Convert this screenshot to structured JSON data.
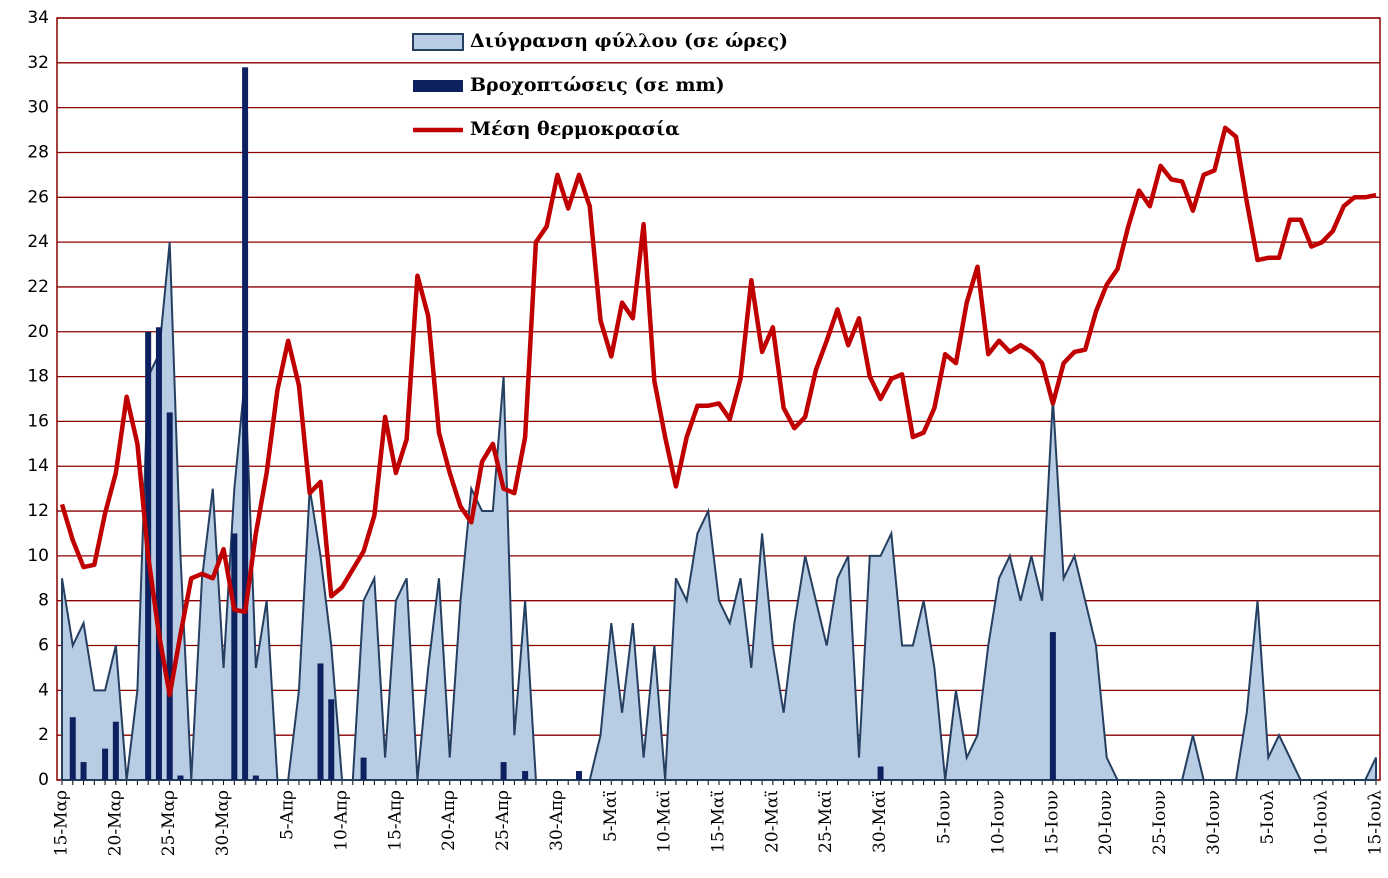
{
  "chart_data": {
    "type": "combo",
    "categories": [
      "15-Μαρ",
      null,
      null,
      null,
      null,
      "20-Μαρ",
      null,
      null,
      null,
      null,
      "25-Μαρ",
      null,
      null,
      null,
      null,
      "30-Μαρ",
      null,
      null,
      null,
      null,
      null,
      "5-Απρ",
      null,
      null,
      null,
      null,
      "10-Απρ",
      null,
      null,
      null,
      null,
      "15-Απρ",
      null,
      null,
      null,
      null,
      "20-Απρ",
      null,
      null,
      null,
      null,
      "25-Απρ",
      null,
      null,
      null,
      null,
      "30-Απρ",
      null,
      null,
      null,
      null,
      "5-Μαϊ",
      null,
      null,
      null,
      null,
      "10-Μαϊ",
      null,
      null,
      null,
      null,
      "15-Μαϊ",
      null,
      null,
      null,
      null,
      "20-Μαϊ",
      null,
      null,
      null,
      null,
      "25-Μαϊ",
      null,
      null,
      null,
      null,
      "30-Μαϊ",
      null,
      null,
      null,
      null,
      null,
      "5-Ιουν",
      null,
      null,
      null,
      null,
      "10-Ιουν",
      null,
      null,
      null,
      null,
      "15-Ιουν",
      null,
      null,
      null,
      null,
      "20-Ιουν",
      null,
      null,
      null,
      null,
      "25-Ιουν",
      null,
      null,
      null,
      null,
      "30-Ιουν",
      null,
      null,
      null,
      null,
      "5-Ιουλ",
      null,
      null,
      null,
      null,
      "10-Ιουλ",
      null,
      null,
      null,
      null,
      "15-Ιουλ"
    ],
    "series": [
      {
        "name": "Διύγρανση φύλλου (σε ώρες)",
        "type": "area",
        "color": "#b8cce4",
        "values": [
          9,
          6,
          7,
          4,
          4,
          6,
          0,
          4,
          18,
          19,
          24,
          10,
          0,
          9,
          13,
          5,
          13,
          18,
          5,
          8,
          0,
          0,
          4,
          13,
          10,
          6,
          0,
          0,
          8,
          9,
          1,
          8,
          9,
          0,
          5,
          9,
          1,
          8,
          13,
          12,
          12,
          18,
          2,
          8,
          0,
          0,
          0,
          0,
          0,
          0,
          2,
          7,
          3,
          7,
          1,
          6,
          0,
          9,
          8,
          11,
          12,
          8,
          7,
          9,
          5,
          11,
          6,
          3,
          7,
          10,
          8,
          6,
          9,
          10,
          1,
          10,
          10,
          11,
          6,
          6,
          8,
          5,
          0,
          4,
          1,
          2,
          6,
          9,
          10,
          8,
          10,
          8,
          17,
          9,
          10,
          8,
          6,
          1,
          0,
          0,
          0,
          0,
          0,
          0,
          0,
          2,
          0,
          0,
          0,
          0,
          3,
          8,
          1,
          2,
          1,
          0,
          0,
          0,
          0,
          0,
          0,
          0,
          1
        ]
      },
      {
        "name": "Βροχοπτώσεις (σε mm)",
        "type": "bar",
        "color": "#0d2060",
        "values": [
          0,
          2.8,
          0.8,
          0,
          1.4,
          2.6,
          0,
          0,
          20,
          20.2,
          16.4,
          0.2,
          0,
          0,
          0,
          0,
          11,
          31.8,
          0.2,
          0,
          0,
          0,
          0,
          0,
          5.2,
          3.6,
          0,
          0,
          1,
          0,
          0,
          0,
          0,
          0,
          0,
          0,
          0,
          0,
          0,
          0,
          0,
          0.8,
          0,
          0.4,
          0,
          0,
          0,
          0,
          0.4,
          0,
          0,
          0,
          0,
          0,
          0,
          0,
          0,
          0,
          0,
          0,
          0,
          0,
          0,
          0,
          0,
          0,
          0,
          0,
          0,
          0,
          0,
          0,
          0,
          0,
          0,
          0,
          0.6,
          0,
          0,
          0,
          0,
          0,
          0,
          0,
          0,
          0,
          0,
          0,
          0,
          0,
          0,
          0,
          6.6,
          0,
          0,
          0,
          0,
          0,
          0,
          0,
          0,
          0,
          0,
          0,
          0,
          0,
          0,
          0,
          0,
          0,
          0,
          0,
          0,
          0,
          0,
          0,
          0,
          0,
          0,
          0,
          0,
          0,
          0
        ]
      },
      {
        "name": "Μέση θερμοκρασία",
        "type": "line",
        "color": "#c00000",
        "values": [
          12.3,
          10.7,
          9.5,
          9.6,
          11.9,
          13.7,
          17.1,
          15.0,
          10.0,
          6.5,
          3.8,
          6.5,
          9.0,
          9.2,
          9.0,
          10.3,
          7.6,
          7.5,
          11.0,
          13.7,
          17.4,
          19.6,
          17.6,
          12.8,
          13.3,
          8.2,
          8.6,
          9.4,
          10.2,
          11.8,
          16.2,
          13.7,
          15.2,
          22.5,
          20.7,
          15.5,
          13.7,
          12.2,
          11.5,
          14.2,
          15.0,
          13.0,
          12.8,
          15.3,
          24.0,
          24.7,
          27.0,
          25.5,
          27.0,
          25.6,
          20.5,
          18.9,
          21.3,
          20.6,
          24.8,
          17.8,
          15.3,
          13.1,
          15.3,
          16.7,
          16.7,
          16.8,
          16.1,
          17.9,
          22.3,
          19.1,
          20.2,
          16.6,
          15.7,
          16.2,
          18.3,
          19.6,
          21.0,
          19.4,
          20.6,
          18.0,
          17.0,
          17.9,
          18.1,
          15.3,
          15.5,
          16.6,
          19.0,
          18.6,
          21.3,
          22.9,
          19.0,
          19.6,
          19.1,
          19.4,
          19.1,
          18.6,
          16.8,
          18.6,
          19.1,
          19.2,
          20.9,
          22.1,
          22.8,
          24.7,
          26.3,
          25.6,
          27.4,
          26.8,
          26.7,
          25.4,
          27.0,
          27.2,
          29.1,
          28.7,
          25.8,
          23.2,
          23.3,
          23.3,
          25.0,
          25.0,
          23.8,
          24.0,
          24.5,
          25.6,
          26.0,
          26.0,
          26.1
        ]
      }
    ],
    "ylim": [
      0,
      34
    ],
    "yticks": [
      0,
      2,
      4,
      6,
      8,
      10,
      12,
      14,
      16,
      18,
      20,
      22,
      24,
      26,
      28,
      30,
      32,
      34
    ],
    "grid": true
  }
}
